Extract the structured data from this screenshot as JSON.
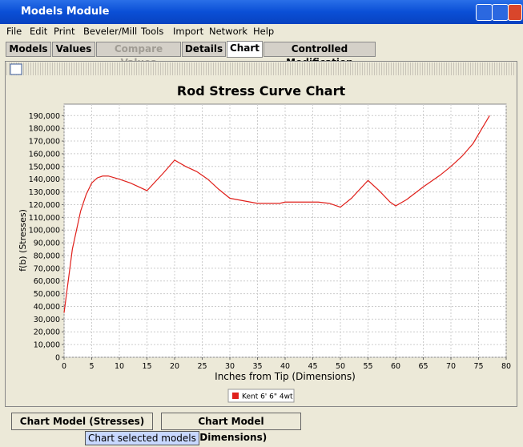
{
  "window": {
    "title": "Models Module"
  },
  "menu": [
    "File",
    "Edit",
    "Print",
    "Beveler/Mill",
    "Tools",
    "Import",
    "Network",
    "Help"
  ],
  "tabs": [
    "Models",
    "Values",
    "Compare Values",
    "Details",
    "Chart",
    "Controlled Modification"
  ],
  "chart_data": {
    "type": "line",
    "title": "Rod Stress Curve Chart",
    "x_label": "Inches from Tip (Dimensions)",
    "y_label": "f(b) (Stresses)",
    "x": [
      0,
      1.5,
      3,
      4,
      5,
      6,
      7,
      8,
      10,
      12,
      15,
      18,
      20,
      22,
      24,
      26,
      28,
      30,
      35,
      39,
      40,
      46,
      48,
      50,
      52,
      55,
      57,
      59,
      60,
      62,
      65,
      68,
      70,
      72,
      74,
      77
    ],
    "series": [
      {
        "name": "Kent 6' 6\" 4wt",
        "color": "#e0201b",
        "values": [
          35000,
          85000,
          115000,
          128000,
          137000,
          141000,
          142500,
          142500,
          140000,
          137000,
          131000,
          145000,
          155000,
          150000,
          146000,
          140000,
          132000,
          125000,
          121000,
          121000,
          122000,
          122000,
          121000,
          118000,
          125000,
          139000,
          131000,
          122000,
          119000,
          124000,
          134000,
          143000,
          150000,
          158000,
          168000,
          190000
        ]
      }
    ],
    "xlim": [
      0,
      80
    ],
    "ylim": [
      0,
      199000
    ],
    "xticks": [
      0,
      5,
      10,
      15,
      20,
      25,
      30,
      35,
      40,
      45,
      50,
      55,
      60,
      65,
      70,
      75,
      80
    ],
    "yticks": [
      0,
      {
        "value": 10000,
        "label": "10,000"
      },
      {
        "value": 20000,
        "label": "20,000"
      },
      {
        "value": 30000,
        "label": "30,000"
      },
      {
        "value": 40000,
        "label": "40,000"
      },
      {
        "value": 50000,
        "label": "50,000"
      },
      {
        "value": 60000,
        "label": "60,000"
      },
      {
        "value": 70000,
        "label": "70,000"
      },
      {
        "value": 80000,
        "label": "80,000"
      },
      {
        "value": 90000,
        "label": "90,000"
      },
      {
        "value": 100000,
        "label": "100,000"
      },
      {
        "value": 110000,
        "label": "110,000"
      },
      {
        "value": 120000,
        "label": "120,000"
      },
      {
        "value": 130000,
        "label": "130,000"
      },
      {
        "value": 140000,
        "label": "140,000"
      },
      {
        "value": 150000,
        "label": "150,000"
      },
      {
        "value": 160000,
        "label": "160,000"
      },
      {
        "value": 170000,
        "label": "170,000"
      },
      {
        "value": 180000,
        "label": "180,000"
      },
      {
        "value": 190000,
        "label": "190,000"
      }
    ],
    "grid": true
  },
  "buttons": [
    "Chart Model (Stresses)",
    "Chart Model (Dimensions)"
  ],
  "tooltip": "Chart selected models"
}
